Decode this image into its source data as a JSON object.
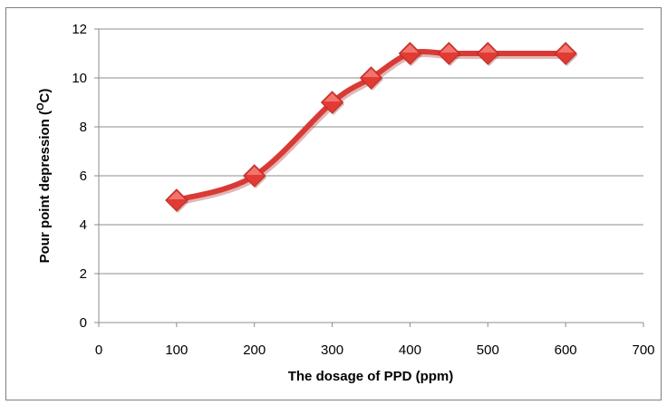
{
  "chart_data": {
    "type": "line",
    "title": "",
    "xlabel": "The dosage of PPD (ppm)",
    "ylabel_main": "Pour point depression (",
    "ylabel_sup": "O",
    "ylabel_end": "C)",
    "xlim": [
      0,
      700
    ],
    "ylim": [
      0,
      12
    ],
    "x_ticks": [
      "0",
      "100",
      "200",
      "300",
      "400",
      "500",
      "600",
      "700"
    ],
    "y_ticks": [
      "0",
      "2",
      "4",
      "6",
      "8",
      "10",
      "12"
    ],
    "grid": "horizontal",
    "legend": "none",
    "series": [
      {
        "color": "#d93a36",
        "marker_color": "#e23b33",
        "x": [
          100,
          200,
          300,
          350,
          400,
          450,
          500,
          600
        ],
        "y": [
          5,
          6,
          9,
          10,
          11,
          11,
          11,
          11
        ]
      }
    ]
  }
}
